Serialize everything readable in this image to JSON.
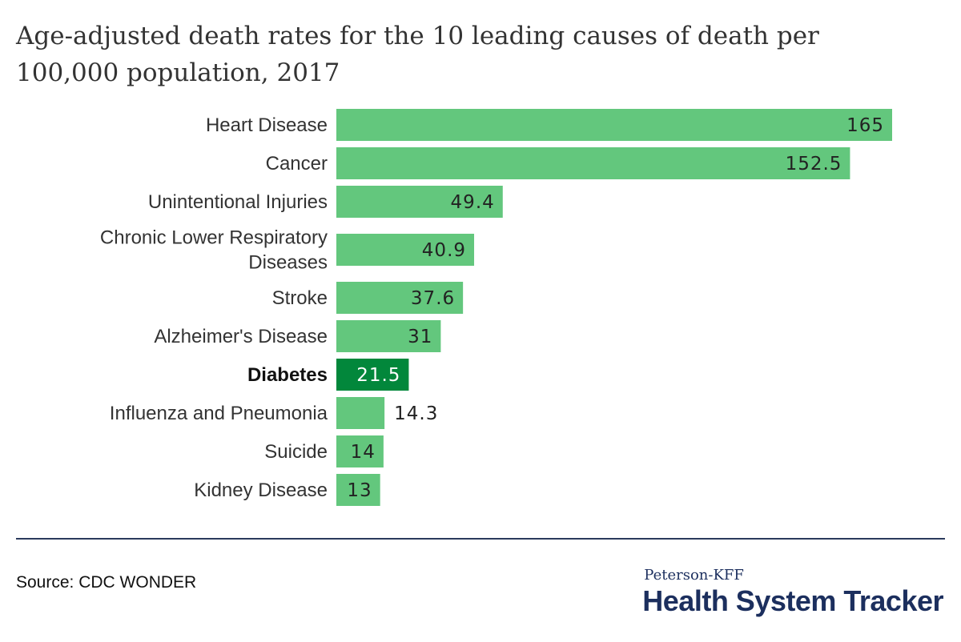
{
  "chart_data": {
    "type": "bar",
    "orientation": "horizontal",
    "title": "Age-adjusted death rates for the 10 leading causes of death per 100,000 population, 2017",
    "categories": [
      "Heart Disease",
      "Cancer",
      "Unintentional Injuries",
      "Chronic Lower Respiratory Diseases",
      "Stroke",
      "Alzheimer's Disease",
      "Diabetes",
      "Influenza and Pneumonia",
      "Suicide",
      "Kidney Disease"
    ],
    "values": [
      165,
      152.5,
      49.4,
      40.9,
      37.6,
      31,
      21.5,
      14.3,
      14,
      13
    ],
    "value_labels": [
      "165",
      "152.5",
      "49.4",
      "40.9",
      "37.6",
      "31",
      "21.5",
      "14.3",
      "14",
      "13"
    ],
    "highlight": "Diabetes",
    "xlim": [
      0,
      165
    ],
    "grid": false,
    "colors": {
      "bar": "#63c77d",
      "highlight": "#02873b"
    }
  },
  "footer": {
    "source": "Source: CDC WONDER",
    "brand_top": "Peterson-KFF",
    "brand_main": "Health System Tracker"
  }
}
